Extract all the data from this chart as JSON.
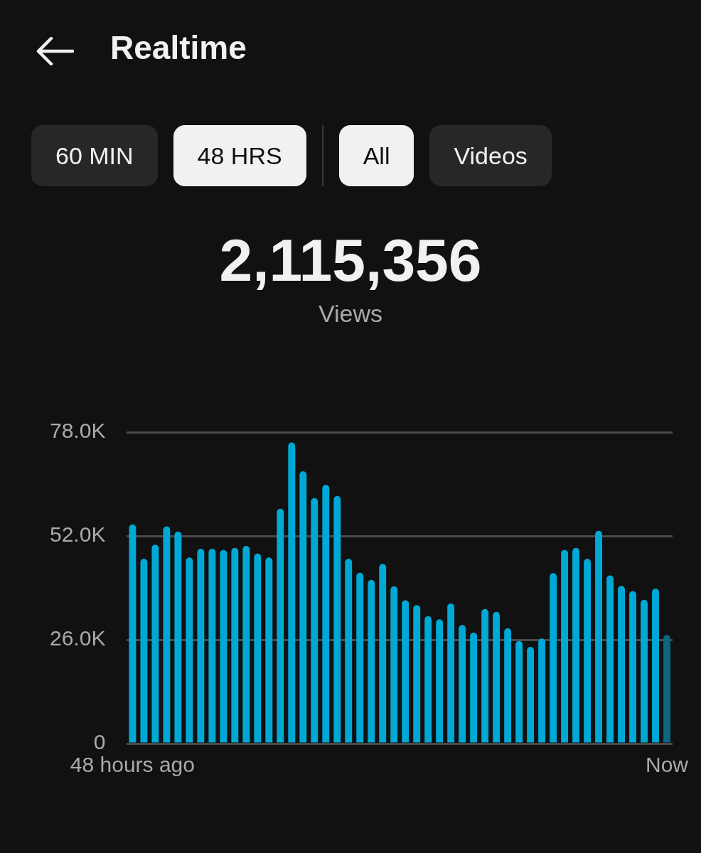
{
  "chart_data": {
    "type": "bar",
    "title": "Realtime",
    "annotations": [
      "60 MIN",
      "48 HRS",
      "All",
      "Videos",
      "2,115,356",
      "Views"
    ],
    "categories": [
      "48 hours ago",
      null,
      null,
      null,
      null,
      null,
      null,
      null,
      null,
      null,
      null,
      null,
      null,
      null,
      null,
      null,
      null,
      null,
      null,
      null,
      null,
      null,
      null,
      null,
      null,
      null,
      null,
      null,
      null,
      null,
      null,
      null,
      null,
      null,
      null,
      null,
      null,
      null,
      null,
      null,
      null,
      null,
      null,
      null,
      null,
      null,
      null,
      "Now"
    ],
    "values": [
      54900,
      46300,
      49800,
      54400,
      53100,
      46600,
      48800,
      48800,
      48500,
      49000,
      49500,
      47600,
      46600,
      58800,
      75400,
      68200,
      61500,
      64800,
      62000,
      46300,
      42800,
      41000,
      45000,
      39400,
      35900,
      34700,
      31900,
      31100,
      35100,
      29700,
      27800,
      33700,
      33000,
      28900,
      25700,
      24200,
      26300,
      42700,
      48500,
      49000,
      46300,
      53300,
      42100,
      39500,
      38200,
      36000,
      38800,
      27200
    ],
    "colors": [
      "#00a8d6",
      "#00a8d6",
      "#00a8d6",
      "#00a8d6",
      "#00a8d6",
      "#00a8d6",
      "#00a8d6",
      "#00a8d6",
      "#00a8d6",
      "#00a8d6",
      "#00a8d6",
      "#00a8d6",
      "#00a8d6",
      "#00a8d6",
      "#00a8d6",
      "#00a8d6",
      "#00a8d6",
      "#00a8d6",
      "#00a8d6",
      "#00a8d6",
      "#00a8d6",
      "#00a8d6",
      "#00a8d6",
      "#00a8d6",
      "#00a8d6",
      "#00a8d6",
      "#00a8d6",
      "#00a8d6",
      "#00a8d6",
      "#00a8d6",
      "#00a8d6",
      "#00a8d6",
      "#00a8d6",
      "#00a8d6",
      "#00a8d6",
      "#00a8d6",
      "#00a8d6",
      "#00a8d6",
      "#00a8d6",
      "#00a8d6",
      "#00a8d6",
      "#00a8d6",
      "#00a8d6",
      "#00a8d6",
      "#00a8d6",
      "#00a8d6",
      "#00a8d6",
      "#0b6680"
    ],
    "ylim": [
      0,
      78000
    ],
    "yticks": [
      0,
      {
        "value": 26000,
        "label": "26.0K"
      },
      {
        "value": 52000,
        "label": "52.0K"
      },
      {
        "value": 78000,
        "label": "78.0K"
      }
    ],
    "grid": "y",
    "legend": false
  }
}
